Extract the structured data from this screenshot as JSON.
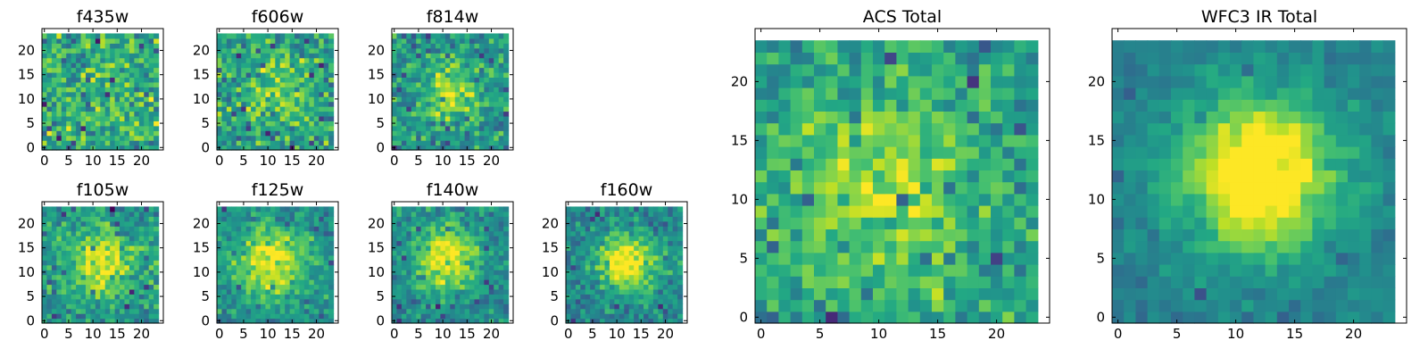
{
  "figure": {
    "description_colormap": "viridis",
    "colors": {
      "low": "#440154",
      "mid": "#21918c",
      "high": "#fde725"
    }
  },
  "chart_data": [
    {
      "type": "heatmap",
      "title": "f435w",
      "xlim": [
        0,
        24
      ],
      "ylim": [
        0,
        24
      ],
      "xticks": [
        0,
        5,
        10,
        15,
        20
      ],
      "yticks": [
        0,
        5,
        10,
        15,
        20
      ],
      "grid_size": [
        24,
        24
      ],
      "structure": "noise",
      "noise": 0.55,
      "peak": 0.1,
      "center": [
        12,
        11
      ],
      "sigma": 5,
      "seed": 11
    },
    {
      "type": "heatmap",
      "title": "f606w",
      "xlim": [
        0,
        24
      ],
      "ylim": [
        0,
        24
      ],
      "xticks": [
        0,
        5,
        10,
        15,
        20
      ],
      "yticks": [
        0,
        5,
        10,
        15,
        20
      ],
      "grid_size": [
        24,
        24
      ],
      "structure": "noise",
      "noise": 0.5,
      "peak": 0.2,
      "center": [
        12,
        11
      ],
      "sigma": 5,
      "seed": 23
    },
    {
      "type": "heatmap",
      "title": "f814w",
      "xlim": [
        0,
        24
      ],
      "ylim": [
        0,
        24
      ],
      "xticks": [
        0,
        5,
        10,
        15,
        20
      ],
      "yticks": [
        0,
        5,
        10,
        15,
        20
      ],
      "grid_size": [
        24,
        24
      ],
      "structure": "noise+source",
      "noise": 0.45,
      "peak": 0.35,
      "center": [
        12,
        12
      ],
      "sigma": 4,
      "seed": 37
    },
    {
      "type": "heatmap",
      "title": "f105w",
      "xlim": [
        0,
        24
      ],
      "ylim": [
        0,
        24
      ],
      "xticks": [
        0,
        5,
        10,
        15,
        20
      ],
      "yticks": [
        0,
        5,
        10,
        15,
        20
      ],
      "grid_size": [
        24,
        24
      ],
      "structure": "noise+source",
      "noise": 0.4,
      "peak": 0.45,
      "center": [
        12,
        12
      ],
      "sigma": 5,
      "seed": 41
    },
    {
      "type": "heatmap",
      "title": "f125w",
      "xlim": [
        0,
        24
      ],
      "ylim": [
        0,
        24
      ],
      "xticks": [
        0,
        5,
        10,
        15,
        20
      ],
      "yticks": [
        0,
        5,
        10,
        15,
        20
      ],
      "grid_size": [
        24,
        24
      ],
      "structure": "noise+source",
      "noise": 0.35,
      "peak": 0.5,
      "center": [
        11,
        12
      ],
      "sigma": 5,
      "seed": 53
    },
    {
      "type": "heatmap",
      "title": "f140w",
      "xlim": [
        0,
        24
      ],
      "ylim": [
        0,
        24
      ],
      "xticks": [
        0,
        5,
        10,
        15,
        20
      ],
      "yticks": [
        0,
        5,
        10,
        15,
        20
      ],
      "grid_size": [
        24,
        24
      ],
      "structure": "noise+source",
      "noise": 0.35,
      "peak": 0.55,
      "center": [
        11,
        13
      ],
      "sigma": 4.5,
      "seed": 67
    },
    {
      "type": "heatmap",
      "title": "f160w",
      "xlim": [
        0,
        24
      ],
      "ylim": [
        0,
        24
      ],
      "xticks": [
        0,
        5,
        10,
        15,
        20
      ],
      "yticks": [
        0,
        5,
        10,
        15,
        20
      ],
      "grid_size": [
        24,
        24
      ],
      "structure": "noise+source",
      "noise": 0.35,
      "peak": 0.6,
      "center": [
        12,
        12
      ],
      "sigma": 4,
      "seed": 79
    },
    {
      "type": "heatmap",
      "title": "ACS Total",
      "xlim": [
        0,
        24
      ],
      "ylim": [
        0,
        24
      ],
      "xticks": [
        0,
        5,
        10,
        15,
        20
      ],
      "yticks": [
        0,
        5,
        10,
        15,
        20
      ],
      "grid_size": [
        24,
        24
      ],
      "structure": "noise+source",
      "noise": 0.4,
      "peak": 0.3,
      "center": [
        10,
        11
      ],
      "sigma": 6,
      "seed": 97
    },
    {
      "type": "heatmap",
      "title": "WFC3 IR Total",
      "xlim": [
        0,
        24
      ],
      "ylim": [
        0,
        24
      ],
      "xticks": [
        0,
        5,
        10,
        15,
        20
      ],
      "yticks": [
        0,
        5,
        10,
        15,
        20
      ],
      "grid_size": [
        24,
        24
      ],
      "structure": "noise+source",
      "noise": 0.18,
      "peak": 0.75,
      "center": [
        12,
        12
      ],
      "sigma": 4.5,
      "seed": 131
    }
  ]
}
